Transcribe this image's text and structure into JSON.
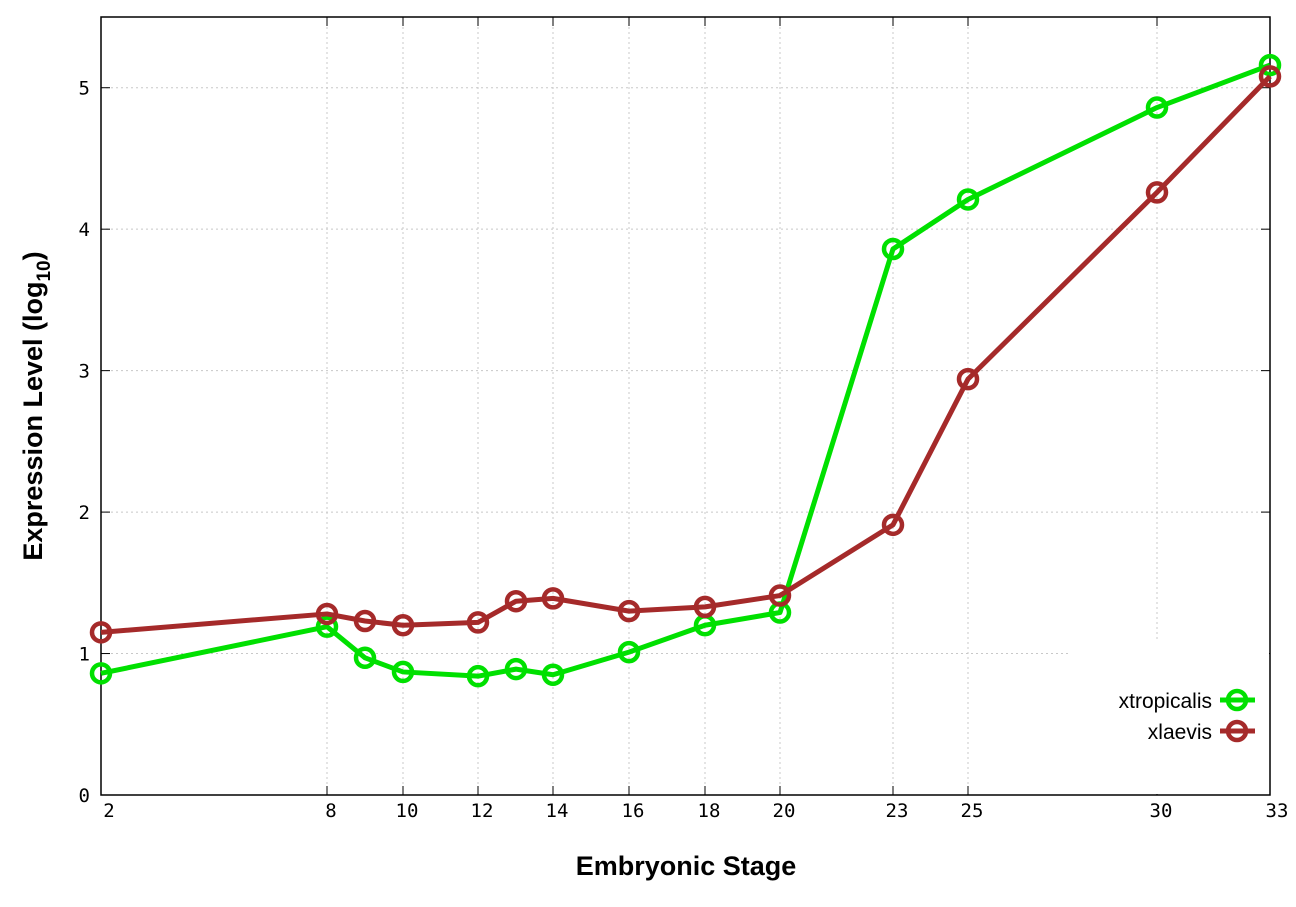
{
  "chart_data": {
    "type": "line",
    "xlabel": "Embryonic Stage",
    "ylabel": "Expression Level (log",
    "ylabel_sub": "10",
    "ylabel_close": ")",
    "x_ticks": [
      2,
      8,
      10,
      12,
      14,
      16,
      18,
      20,
      23,
      25,
      30,
      33
    ],
    "y_ticks": [
      0,
      1,
      2,
      3,
      4,
      5
    ],
    "xlim": [
      2,
      33
    ],
    "ylim": [
      0,
      5.5
    ],
    "x_scale": "categorical",
    "grid": true,
    "legend_position": "bottom-right",
    "x_order": [
      "2",
      "8",
      "9",
      "10",
      "12",
      "13",
      "14",
      "16",
      "18",
      "20",
      "23",
      "25",
      "30",
      "33"
    ],
    "series": [
      {
        "name": "xtropicalis",
        "color": "#00e000",
        "x": [
          "2",
          "8",
          "9",
          "10",
          "12",
          "13",
          "14",
          "16",
          "18",
          "20",
          "23",
          "25",
          "30",
          "33"
        ],
        "values": [
          0.86,
          1.19,
          0.97,
          0.87,
          0.84,
          0.89,
          0.85,
          1.01,
          1.2,
          1.29,
          3.86,
          4.21,
          4.86,
          5.16
        ]
      },
      {
        "name": "xlaevis",
        "color": "#a52a2a",
        "x": [
          "2",
          "8",
          "9",
          "10",
          "12",
          "13",
          "14",
          "16",
          "18",
          "20",
          "23",
          "25",
          "30",
          "33"
        ],
        "values": [
          1.15,
          1.28,
          1.23,
          1.2,
          1.22,
          1.37,
          1.39,
          1.3,
          1.33,
          1.41,
          1.91,
          2.94,
          4.26,
          5.08
        ]
      }
    ]
  }
}
